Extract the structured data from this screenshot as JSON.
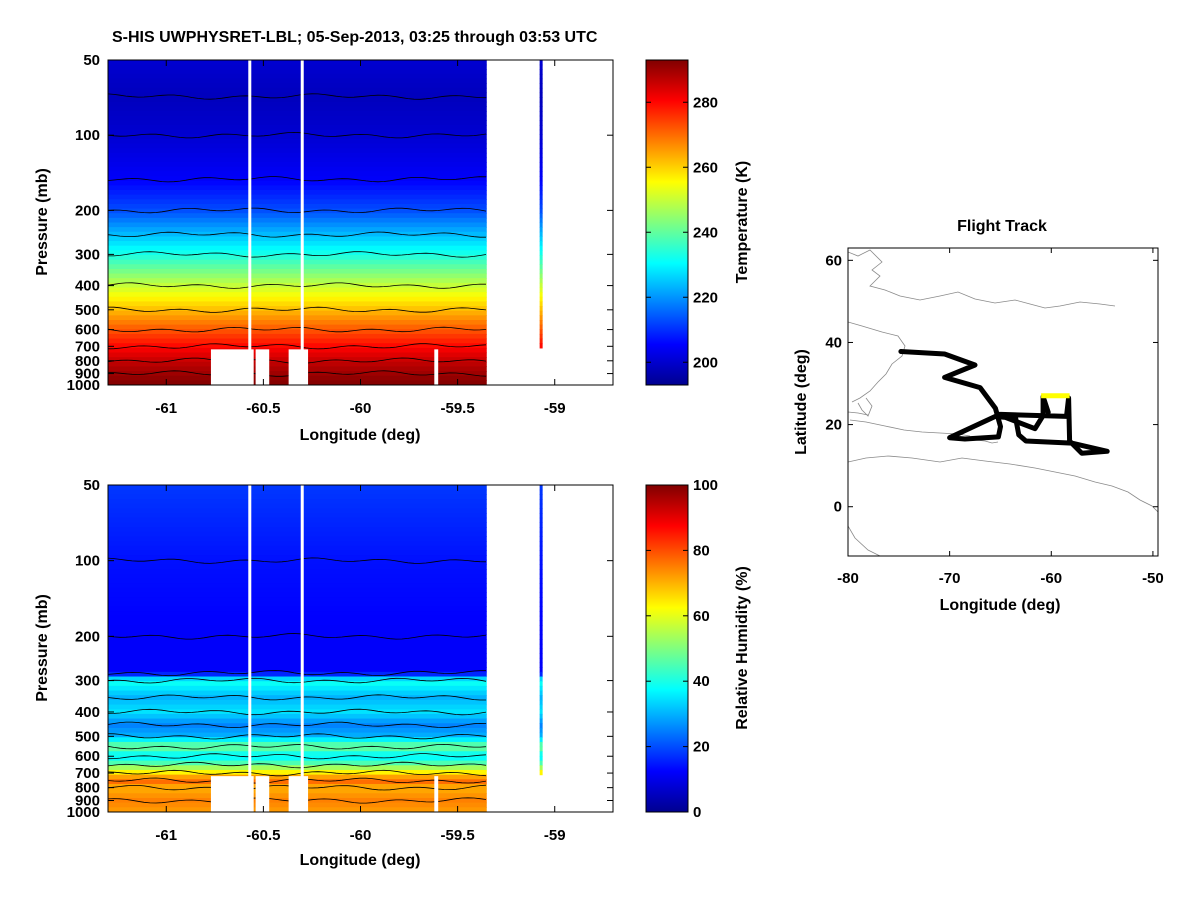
{
  "title": "S-HIS UWPHYSRET-LBL;   05-Sep-2013, 03:25 through 03:53 UTC",
  "chart_data": [
    {
      "type": "heatmap",
      "name": "temperature-profile",
      "xlabel": "Longitude (deg)",
      "ylabel": "Pressure (mb)",
      "xlim": [
        -61.3,
        -58.7
      ],
      "ylim": [
        1000,
        50
      ],
      "y_scale": "log",
      "x_ticks": [
        -61,
        -60.5,
        -60,
        -59.5,
        -59
      ],
      "x_tick_labels": [
        "-61",
        "-60.5",
        "-60",
        "-59.5",
        "-59"
      ],
      "y_ticks": [
        50,
        100,
        200,
        300,
        400,
        500,
        600,
        700,
        800,
        900,
        1000
      ],
      "y_tick_labels": [
        "50",
        "100",
        "200",
        "300",
        "400",
        "500",
        "600",
        "700",
        "800",
        "900",
        "1000"
      ],
      "data_x_range": [
        -61.3,
        -59.35
      ],
      "gap_longitudes": [
        -60.57,
        -60.3
      ],
      "extra_profile_longitude": -59.07,
      "colorbar": {
        "label": "Temperature (K)",
        "range": [
          193,
          293
        ],
        "ticks": [
          200,
          220,
          240,
          260,
          280
        ],
        "tick_labels": [
          "200",
          "220",
          "240",
          "260",
          "280"
        ]
      },
      "profile_levels_mb": [
        50,
        70,
        100,
        150,
        200,
        250,
        300,
        400,
        500,
        600,
        700,
        800,
        900,
        1000
      ],
      "profile_values": [
        201,
        199,
        201,
        205,
        213,
        224,
        233,
        250,
        262,
        272,
        280,
        286,
        290,
        293
      ]
    },
    {
      "type": "heatmap",
      "name": "humidity-profile",
      "xlabel": "Longitude (deg)",
      "ylabel": "Pressure (mb)",
      "xlim": [
        -61.3,
        -58.7
      ],
      "ylim": [
        1000,
        50
      ],
      "y_scale": "log",
      "x_ticks": [
        -61,
        -60.5,
        -60,
        -59.5,
        -59
      ],
      "x_tick_labels": [
        "-61",
        "-60.5",
        "-60",
        "-59.5",
        "-59"
      ],
      "y_ticks": [
        50,
        100,
        200,
        300,
        400,
        500,
        600,
        700,
        800,
        900,
        1000
      ],
      "y_tick_labels": [
        "50",
        "100",
        "200",
        "300",
        "400",
        "500",
        "600",
        "700",
        "800",
        "900",
        "1000"
      ],
      "data_x_range": [
        -61.3,
        -59.35
      ],
      "gap_longitudes": [
        -60.57,
        -60.3
      ],
      "extra_profile_longitude": -59.07,
      "colorbar": {
        "label": "Relative Humidity (%)",
        "range": [
          0,
          100
        ],
        "ticks": [
          0,
          20,
          40,
          60,
          80,
          100
        ],
        "tick_labels": [
          "0",
          "20",
          "40",
          "60",
          "80",
          "100"
        ]
      },
      "profile_levels_mb": [
        50,
        100,
        200,
        280,
        300,
        350,
        400,
        450,
        500,
        550,
        600,
        650,
        700,
        750,
        800,
        900,
        1000
      ],
      "profile_values": [
        18,
        14,
        12,
        12,
        40,
        30,
        35,
        25,
        30,
        50,
        35,
        48,
        65,
        78,
        70,
        75,
        72
      ]
    },
    {
      "type": "line",
      "name": "flight-track",
      "title": "Flight Track",
      "xlabel": "Longitude (deg)",
      "ylabel": "Latitude (deg)",
      "xlim": [
        -80,
        -49.5
      ],
      "ylim": [
        -12,
        63
      ],
      "x_ticks": [
        -80,
        -70,
        -60,
        -50
      ],
      "x_tick_labels": [
        "-80",
        "-70",
        "-60",
        "-50"
      ],
      "y_ticks": [
        0,
        20,
        40,
        60
      ],
      "y_tick_labels": [
        "0",
        "20",
        "40",
        "60"
      ],
      "track": [
        [
          -74.8,
          37.8
        ],
        [
          -70.5,
          37.2
        ],
        [
          -67.5,
          34.5
        ],
        [
          -70.5,
          31.5
        ],
        [
          -67,
          29
        ],
        [
          -65.5,
          24
        ],
        [
          -65,
          19.5
        ],
        [
          -65.2,
          17
        ],
        [
          -68.5,
          16.5
        ],
        [
          -70,
          16.8
        ],
        [
          -65.5,
          22
        ],
        [
          -63.5,
          21.5
        ],
        [
          -63.2,
          17.5
        ],
        [
          -62.5,
          16
        ],
        [
          -58,
          15.5
        ],
        [
          -54.5,
          13.5
        ],
        [
          -57,
          13
        ],
        [
          -58.2,
          16
        ],
        [
          -58.3,
          26.5
        ],
        [
          -58.5,
          22
        ],
        [
          -65.3,
          22.5
        ],
        [
          -61.6,
          19
        ],
        [
          -60.8,
          22.2
        ],
        [
          -60.8,
          26.8
        ],
        [
          -60.3,
          23
        ]
      ],
      "highlight_segment": [
        [
          -61,
          27
        ],
        [
          -58.2,
          27
        ]
      ],
      "track_color": "#000000",
      "highlight_color": "#ffff00"
    }
  ]
}
